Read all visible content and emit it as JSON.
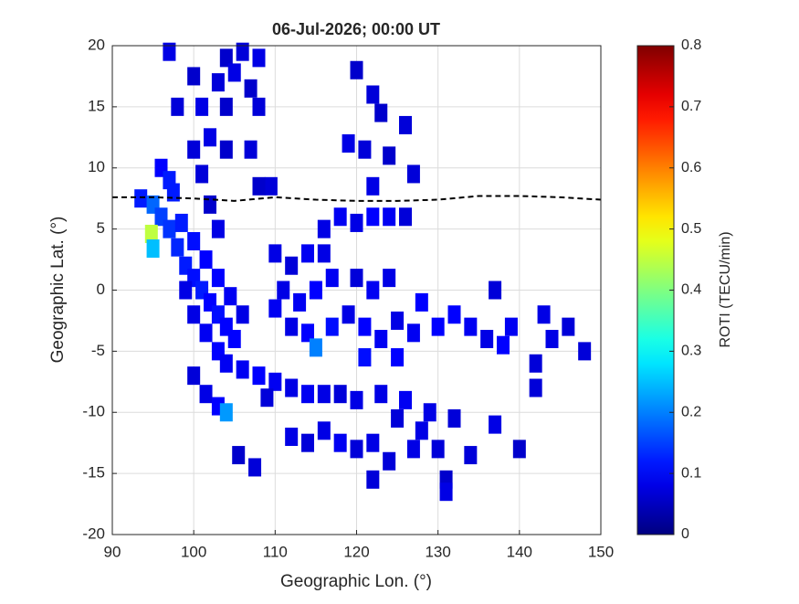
{
  "chart_data": {
    "type": "gridmap",
    "title": "06-Jul-2026; 00:00 UT",
    "x_label": "Geographic Lon. (°)",
    "y_label": "Geographic Lat. (°)",
    "colorbar_label": "ROTI (TECU/min)",
    "xlim": [
      90,
      150
    ],
    "xticks": [
      90,
      100,
      110,
      120,
      130,
      140,
      150
    ],
    "ylim": [
      -20,
      20
    ],
    "yticks": [
      -20,
      -15,
      -10,
      -5,
      0,
      5,
      10,
      15,
      20
    ],
    "clim": [
      0,
      0.8
    ],
    "cticks": [
      0,
      0.1,
      0.2,
      0.3,
      0.4,
      0.5,
      0.6,
      0.7,
      0.8
    ],
    "colormap": "jet",
    "grid": true,
    "x": [
      97,
      104,
      106,
      108,
      100,
      103,
      105,
      107,
      98,
      101,
      104,
      108,
      102,
      100,
      104,
      107,
      109.5,
      108,
      120,
      122,
      123,
      126,
      119,
      121,
      124,
      127,
      122,
      93.5,
      95,
      96,
      97,
      96,
      94.8,
      95,
      97,
      98,
      99,
      100,
      101,
      102,
      103,
      104,
      105,
      98.5,
      100,
      101.5,
      103,
      104.5,
      106,
      99,
      100,
      101.5,
      103,
      104,
      97.5,
      103,
      102,
      101,
      106,
      108,
      110,
      112,
      114,
      116,
      118,
      109,
      100,
      101.5,
      103,
      104,
      105.5,
      107.5,
      110,
      112,
      114,
      116,
      118,
      111,
      113,
      115,
      117,
      112,
      114,
      115,
      117,
      119,
      116,
      110,
      120,
      122,
      124,
      126,
      120,
      122,
      124,
      121,
      123,
      125,
      121,
      125,
      127,
      128,
      130,
      132,
      134,
      136,
      138,
      137,
      139,
      143,
      146,
      144,
      142,
      148,
      142,
      137,
      132,
      129,
      126,
      123,
      120,
      125,
      128,
      112,
      114,
      116,
      118,
      120,
      122,
      124,
      127,
      130,
      131,
      122,
      134,
      140,
      131
    ],
    "y": [
      19.5,
      19,
      19.5,
      19,
      17.5,
      17,
      17.8,
      16.5,
      15,
      15,
      15,
      15,
      12.5,
      11.5,
      11.5,
      11.5,
      8.5,
      8.5,
      18,
      16,
      14.5,
      13.5,
      12,
      11.5,
      11,
      9.5,
      8.5,
      7.5,
      7,
      10,
      9,
      6,
      4.6,
      3.4,
      5,
      3.5,
      2,
      1,
      0,
      -1,
      -2,
      -3,
      -4,
      5.5,
      4,
      2.5,
      1,
      -0.5,
      -2,
      0,
      -2,
      -3.5,
      -5,
      -6,
      8,
      5,
      7,
      9.5,
      -6.5,
      -7,
      -7.5,
      -8,
      -8.5,
      -8.5,
      -8.5,
      -8.8,
      -7,
      -8.5,
      -9.5,
      -10,
      -13.5,
      -14.5,
      3,
      2,
      3,
      5,
      6,
      0,
      -1,
      0,
      1,
      -3,
      -3.5,
      -4.7,
      -3,
      -2,
      3,
      -1.5,
      5.5,
      6,
      6,
      6,
      1,
      0,
      1,
      -3,
      -4,
      -2.5,
      -5.5,
      -5.5,
      -3.5,
      -1,
      -3,
      -2,
      -3,
      -4,
      -4.5,
      0,
      -3,
      -2,
      -3,
      -4,
      -6,
      -5,
      -8,
      -11,
      -10.5,
      -10,
      -9,
      -8.5,
      -9,
      -10.5,
      -11.5,
      -12,
      -12.5,
      -11.5,
      -12.5,
      -13,
      -12.5,
      -14,
      -13,
      -13,
      -15.5,
      -15.5,
      -13.5,
      -13,
      -16.5
    ],
    "values": [
      0.08,
      0.06,
      0.07,
      0.08,
      0.06,
      0.07,
      0.08,
      0.06,
      0.07,
      0.08,
      0.06,
      0.07,
      0.08,
      0.07,
      0.06,
      0.07,
      0.07,
      0.06,
      0.06,
      0.07,
      0.06,
      0.07,
      0.08,
      0.07,
      0.06,
      0.07,
      0.08,
      0.12,
      0.18,
      0.1,
      0.12,
      0.15,
      0.45,
      0.25,
      0.14,
      0.13,
      0.12,
      0.11,
      0.12,
      0.1,
      0.11,
      0.1,
      0.1,
      0.12,
      0.11,
      0.1,
      0.1,
      0.09,
      0.08,
      0.08,
      0.08,
      0.09,
      0.1,
      0.09,
      0.12,
      0.08,
      0.06,
      0.07,
      0.09,
      0.1,
      0.09,
      0.08,
      0.09,
      0.08,
      0.07,
      0.07,
      0.07,
      0.08,
      0.1,
      0.22,
      0.06,
      0.07,
      0.08,
      0.07,
      0.09,
      0.08,
      0.09,
      0.08,
      0.09,
      0.1,
      0.09,
      0.08,
      0.1,
      0.2,
      0.11,
      0.08,
      0.08,
      0.09,
      0.08,
      0.1,
      0.09,
      0.07,
      0.07,
      0.09,
      0.08,
      0.1,
      0.09,
      0.08,
      0.11,
      0.1,
      0.09,
      0.1,
      0.1,
      0.1,
      0.09,
      0.08,
      0.1,
      0.07,
      0.09,
      0.08,
      0.07,
      0.08,
      0.07,
      0.07,
      0.07,
      0.08,
      0.07,
      0.08,
      0.09,
      0.08,
      0.08,
      0.07,
      0.08,
      0.08,
      0.07,
      0.08,
      0.09,
      0.07,
      0.08,
      0.07,
      0.08,
      0.07,
      0.06,
      0.07,
      0.07,
      0.06,
      0.08
    ],
    "dip_equator": {
      "x": [
        90,
        95,
        100,
        105,
        110,
        115,
        120,
        125,
        130,
        135,
        140,
        145,
        150
      ],
      "y": [
        7.6,
        7.6,
        7.5,
        7.3,
        7.6,
        7.4,
        7.3,
        7.3,
        7.4,
        7.7,
        7.7,
        7.6,
        7.4
      ]
    }
  }
}
